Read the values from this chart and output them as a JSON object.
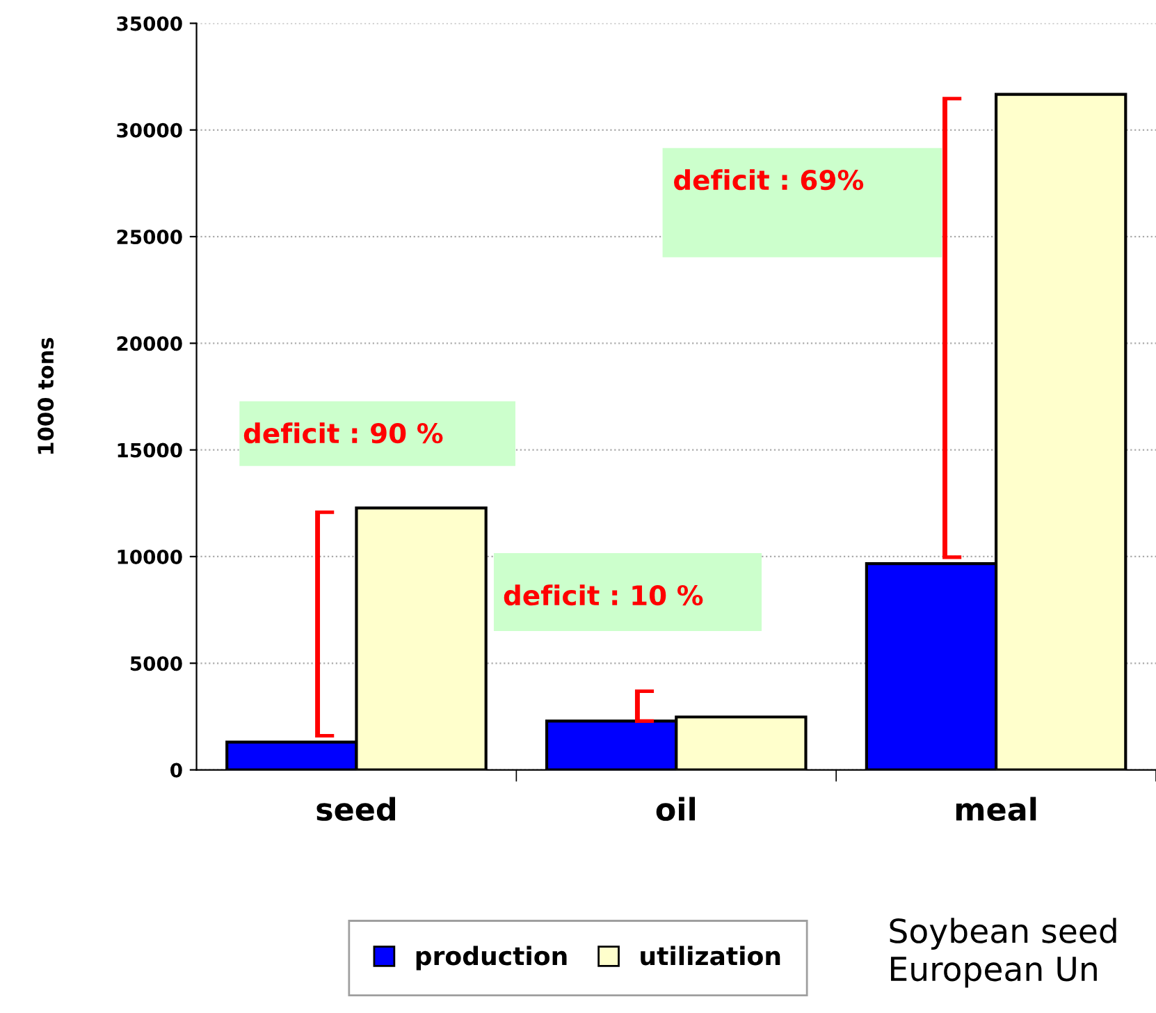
{
  "chart_data": {
    "type": "bar",
    "ylabel": "1000 tons",
    "categories": [
      "seed",
      "oil",
      "meal"
    ],
    "series": [
      {
        "name": "production",
        "color": "#0000ff",
        "values": [
          1300,
          2290,
          9670
        ]
      },
      {
        "name": "utilization",
        "color": "#ffffcc",
        "values": [
          12280,
          2480,
          31670
        ]
      }
    ],
    "ylim": [
      0,
      35000
    ],
    "yticks": [
      0,
      5000,
      10000,
      15000,
      20000,
      25000,
      30000,
      35000
    ],
    "grid": "y",
    "legend": "bottom",
    "annotations": [
      "deficit : 90 %",
      "deficit : 10 %",
      "deficit : 69%",
      "Soybean seed\nEuropean Un"
    ]
  }
}
